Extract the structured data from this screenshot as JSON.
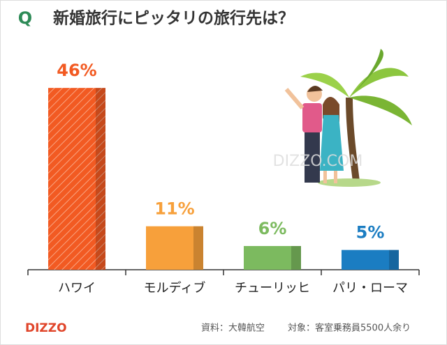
{
  "chart_data": {
    "type": "bar",
    "title_prefix": "Q",
    "title": "新婚旅行にピッタリの旅行先は？",
    "categories": [
      "ハワイ",
      "モルディブ",
      "チューリッヒ",
      "パリ・ローマ"
    ],
    "values": [
      46,
      11,
      6,
      5
    ],
    "value_labels": [
      "46%",
      "11%",
      "6%",
      "5%"
    ],
    "colors": [
      "#f25a22",
      "#f7a03b",
      "#7cba5f",
      "#1b7dc2"
    ],
    "hatched": [
      true,
      false,
      false,
      false
    ],
    "source": "資料：大韓航空",
    "sample": "対象：客室乗務員5500人余り",
    "brand": "DIZZO",
    "watermark": "DIZZO.COM"
  }
}
